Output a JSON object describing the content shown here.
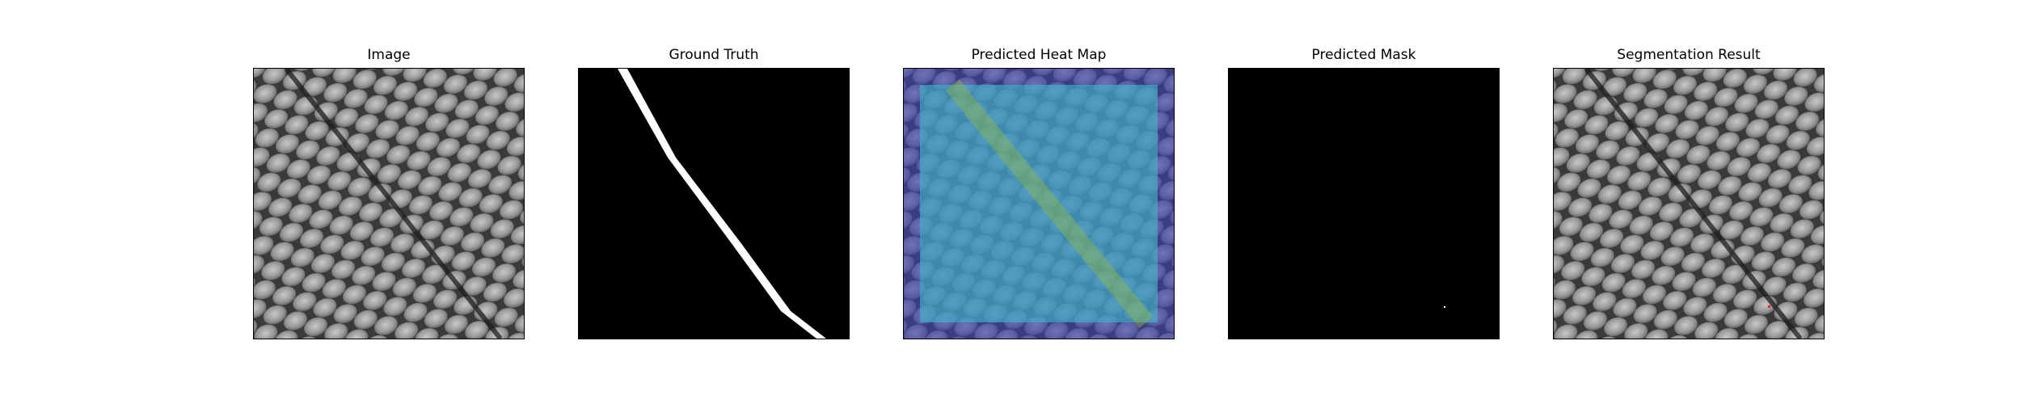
{
  "figure": {
    "panels": [
      {
        "title": "Image"
      },
      {
        "title": "Ground Truth"
      },
      {
        "title": "Predicted Heat Map"
      },
      {
        "title": "Predicted Mask"
      },
      {
        "title": "Segmentation Result"
      }
    ]
  },
  "colors": {
    "background": "#ffffff",
    "frame": "#000000",
    "mask_black": "#000000",
    "mask_white": "#ffffff",
    "fabric_dark": "#3a3a3a",
    "fabric_light": "#b4b4b4",
    "heat_border": "#3a3fb0",
    "heat_core": "#41b8c8",
    "heat_hot": "#7fb04a",
    "overlay_red": "#ff2020"
  }
}
